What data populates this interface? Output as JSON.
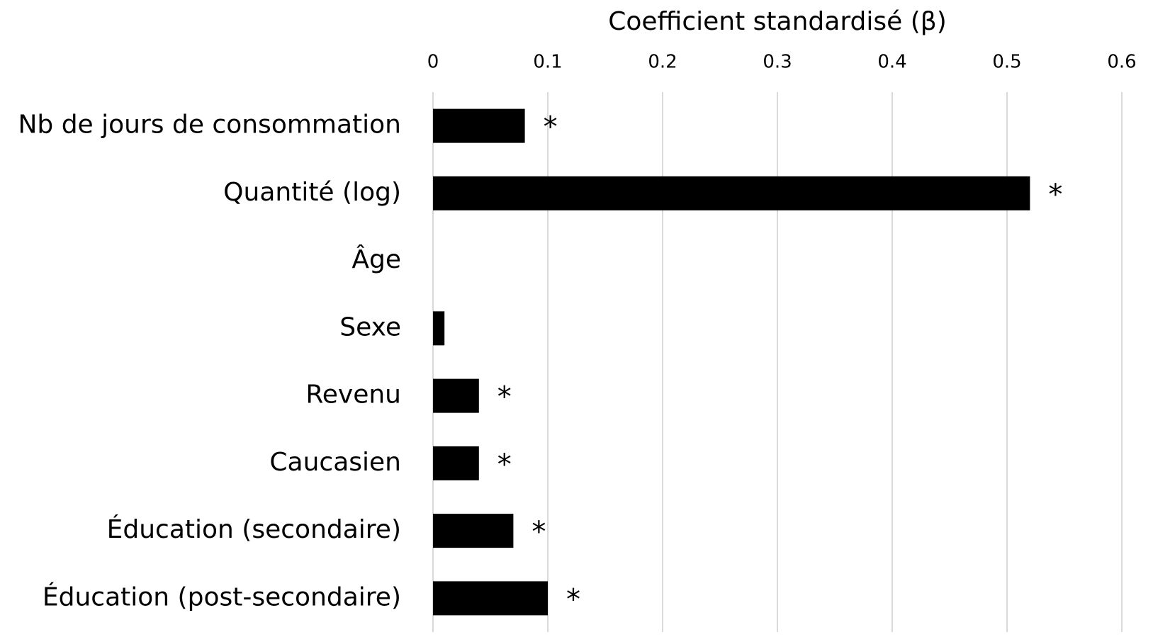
{
  "chart_data": {
    "type": "barh",
    "xlabel": "Coefficient standardisé (β)",
    "categories": [
      "Nb de jours de consommation",
      "Quantité (log)",
      "Âge",
      "Sexe",
      "Revenu",
      "Caucasien",
      "Éducation (secondaire)",
      "Éducation (post-secondaire)"
    ],
    "values": [
      0.08,
      0.52,
      0,
      0.01,
      0.04,
      0.04,
      0.07,
      0.1
    ],
    "annotations": [
      "*",
      "*",
      null,
      null,
      "*",
      "*",
      "*",
      "*"
    ],
    "color": "#000000",
    "xlim": [
      0,
      0.6
    ],
    "xticks": [
      0,
      0.1,
      0.2,
      0.3,
      0.4,
      0.5,
      0.6
    ],
    "grid": true,
    "xaxis_position": "top"
  }
}
